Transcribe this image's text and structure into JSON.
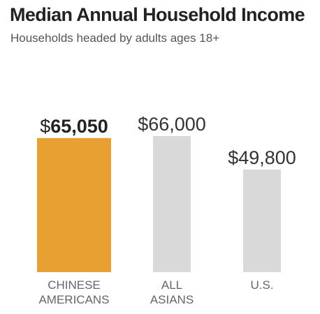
{
  "chart_data": {
    "type": "bar",
    "title": "Median Annual Household Income",
    "subtitle": "Households headed by adults ages 18+",
    "categories": [
      [
        "CHINESE",
        "AMERICANS"
      ],
      [
        "ALL",
        "ASIANS"
      ],
      [
        "U.S."
      ]
    ],
    "values": [
      65050,
      66000,
      49800
    ],
    "value_labels": [
      "$65,050",
      "$66,000",
      "$49,800"
    ],
    "highlight_index": 0,
    "ylim": [
      0,
      66000
    ],
    "grid": false,
    "colors": {
      "highlight": "#E8A033",
      "default": "#D9D9D9"
    }
  }
}
